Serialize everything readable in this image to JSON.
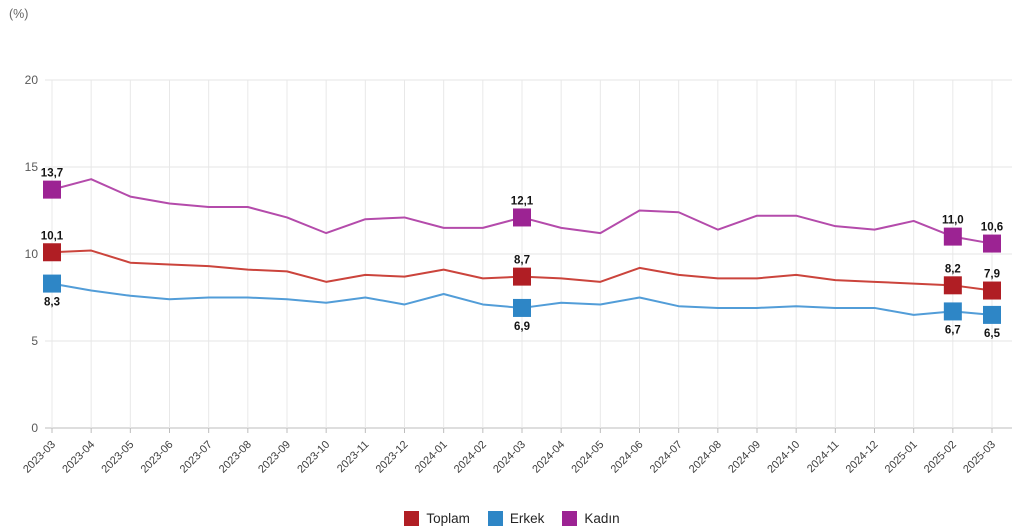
{
  "chart_data": {
    "type": "line",
    "title": "",
    "unit": "(%)",
    "grid": true,
    "legend_position": "bottom-center",
    "y_axis": {
      "min": 0,
      "max": 20,
      "ticks": [
        0,
        5,
        10,
        15,
        20
      ]
    },
    "x_axis": {
      "label_rotation": -45
    },
    "categories": [
      "2023-03",
      "2023-04",
      "2023-05",
      "2023-06",
      "2023-07",
      "2023-08",
      "2023-09",
      "2023-10",
      "2023-11",
      "2023-12",
      "2024-01",
      "2024-02",
      "2024-03",
      "2024-04",
      "2024-05",
      "2024-06",
      "2024-07",
      "2024-08",
      "2024-09",
      "2024-10",
      "2024-11",
      "2024-12",
      "2025-01",
      "2025-02",
      "2025-03"
    ],
    "series": [
      {
        "name": "Toplam",
        "marker_color": "#B01E24",
        "line_color": "#CB443C",
        "label_position": "above",
        "values": [
          10.1,
          10.2,
          9.5,
          9.4,
          9.3,
          9.1,
          9.0,
          8.4,
          8.8,
          8.7,
          9.1,
          8.6,
          8.7,
          8.6,
          8.4,
          9.2,
          8.8,
          8.6,
          8.6,
          8.8,
          8.5,
          8.4,
          8.3,
          8.2,
          7.9
        ],
        "point_labels": {
          "0": "10,1",
          "12": "8,7",
          "23": "8,2",
          "24": "7,9"
        }
      },
      {
        "name": "Erkek",
        "marker_color": "#2E86C6",
        "line_color": "#529DD8",
        "label_position": "below",
        "values": [
          8.3,
          7.9,
          7.6,
          7.4,
          7.5,
          7.5,
          7.4,
          7.2,
          7.5,
          7.1,
          7.7,
          7.1,
          6.9,
          7.2,
          7.1,
          7.5,
          7.0,
          6.9,
          6.9,
          7.0,
          6.9,
          6.9,
          6.5,
          6.7,
          6.5
        ],
        "point_labels": {
          "0": "8,3",
          "12": "6,9",
          "23": "6,7",
          "24": "6,5"
        }
      },
      {
        "name": "Kadın",
        "marker_color": "#9C2393",
        "line_color": "#B44BAB",
        "label_position": "above",
        "values": [
          13.7,
          14.3,
          13.3,
          12.9,
          12.7,
          12.7,
          12.1,
          11.2,
          12.0,
          12.1,
          11.5,
          11.5,
          12.1,
          11.5,
          11.2,
          12.5,
          12.4,
          11.4,
          12.2,
          12.2,
          11.6,
          11.4,
          11.9,
          11.0,
          10.6
        ],
        "point_labels": {
          "0": "13,7",
          "12": "12,1",
          "23": "11,0",
          "24": "10,6"
        }
      }
    ]
  }
}
